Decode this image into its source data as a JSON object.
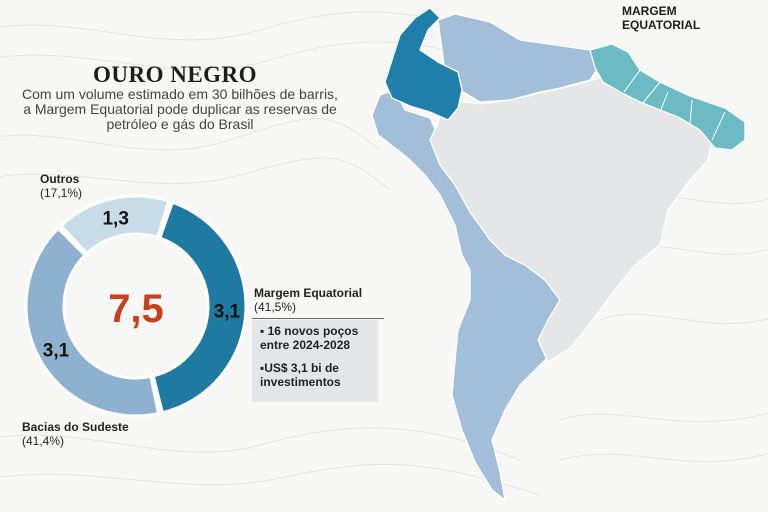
{
  "title": "OURO NEGRO",
  "subtitle": "Com um volume estimado em 30 bilhões de barris, a Margem Equatorial pode duplicar as reservas de petróleo e gás do Brasil",
  "chart_data": {
    "type": "pie",
    "total_label": "7,5",
    "slices": [
      {
        "name": "Margem Equatorial",
        "value": 3.1,
        "value_label": "3,1",
        "percent_label": "(41,5%)",
        "color": "#1e7aa0"
      },
      {
        "name": "Bacias do Sudeste",
        "value": 3.1,
        "value_label": "3,1",
        "percent_label": "(41,4%)",
        "color": "#8eb1cf"
      },
      {
        "name": "Outros",
        "value": 1.3,
        "value_label": "1,3",
        "percent_label": "(17,1%)",
        "color": "#c8dbe9"
      }
    ],
    "total_color": "#c94020"
  },
  "info_box": {
    "line1": "▪ 16 novos poços entre 2024-2028",
    "line2": "▪US$ 3,1 bi de investimentos"
  },
  "map": {
    "label": "MARGEM EQUATORIAL",
    "colors": {
      "brazil": "#e4e6e8",
      "neighbors": "#a3bed8",
      "colombia": "#1f7fa8",
      "margin": "#6cbac4"
    }
  }
}
